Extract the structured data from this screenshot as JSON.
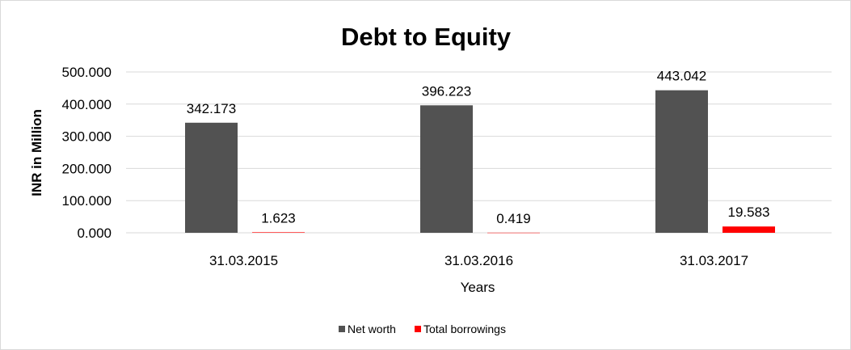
{
  "chart_data": {
    "type": "bar",
    "title": "Debt to Equity",
    "xlabel": "Years",
    "ylabel": "INR in Million",
    "categories": [
      "31.03.2015",
      "31.03.2016",
      "31.03.2017"
    ],
    "series": [
      {
        "name": "Net worth",
        "color": "#525252",
        "values": [
          342.173,
          396.223,
          443.042
        ],
        "labels": [
          "342.173",
          "396.223",
          "443.042"
        ]
      },
      {
        "name": "Total borrowings",
        "color": "#ff0000",
        "values": [
          1.623,
          0.419,
          19.583
        ],
        "labels": [
          "1.623",
          "0.419",
          "19.583"
        ]
      }
    ],
    "ylim": [
      0,
      500
    ],
    "yticks": [
      "0.000",
      "100.000",
      "200.000",
      "300.000",
      "400.000",
      "500.000"
    ],
    "grid": true,
    "legend": "bottom"
  }
}
